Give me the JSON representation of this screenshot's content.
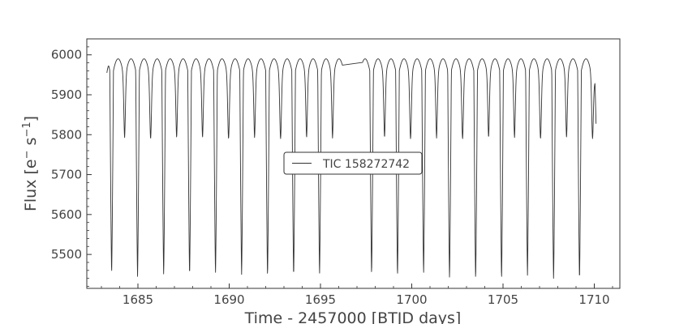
{
  "chart_data": {
    "type": "line",
    "title": "",
    "xlabel": "Time - 2457000 [BTJD days]",
    "ylabel_base": "Flux [e",
    "ylabel_sup1": "−",
    "ylabel_mid": " s",
    "ylabel_sup2": "−1",
    "ylabel_end": "]",
    "xlim": [
      1682.2,
      1711.4
    ],
    "ylim": [
      5415,
      6040
    ],
    "xticks": [
      1685,
      1690,
      1695,
      1700,
      1705,
      1710
    ],
    "yticks": [
      5500,
      5600,
      5700,
      5800,
      5900,
      6000
    ],
    "grid": false,
    "legend_position": "center",
    "line_color": "#333333",
    "series": [
      {
        "name": "TIC 158272742",
        "x_start": 1683.3,
        "x_end": 1710.1,
        "gap": [
          1696.2,
          1697.3
        ],
        "period": 1.4237,
        "eclipse_epoch": 1683.56,
        "eclipse_depth_min": 5445,
        "quadrature_max": 5990,
        "secondary_dip": 5850,
        "start_value": 5955,
        "end_value": 5820,
        "eclipse_minima": [
          [
            1683.56,
            5452
          ],
          [
            1684.98,
            5445
          ],
          [
            1686.41,
            5448
          ],
          [
            1687.83,
            5446
          ],
          [
            1689.25,
            5452
          ],
          [
            1690.68,
            5450
          ],
          [
            1692.1,
            5445
          ],
          [
            1693.53,
            5444
          ],
          [
            1694.95,
            5450
          ],
          [
            1696.37,
            5452
          ],
          [
            1697.8,
            5449
          ],
          [
            1699.22,
            5445
          ],
          [
            1700.65,
            5452
          ],
          [
            1702.07,
            5440
          ],
          [
            1703.5,
            5437
          ],
          [
            1704.92,
            5437
          ],
          [
            1706.34,
            5448
          ],
          [
            1707.77,
            5437
          ],
          [
            1709.19,
            5435
          ]
        ]
      }
    ]
  }
}
